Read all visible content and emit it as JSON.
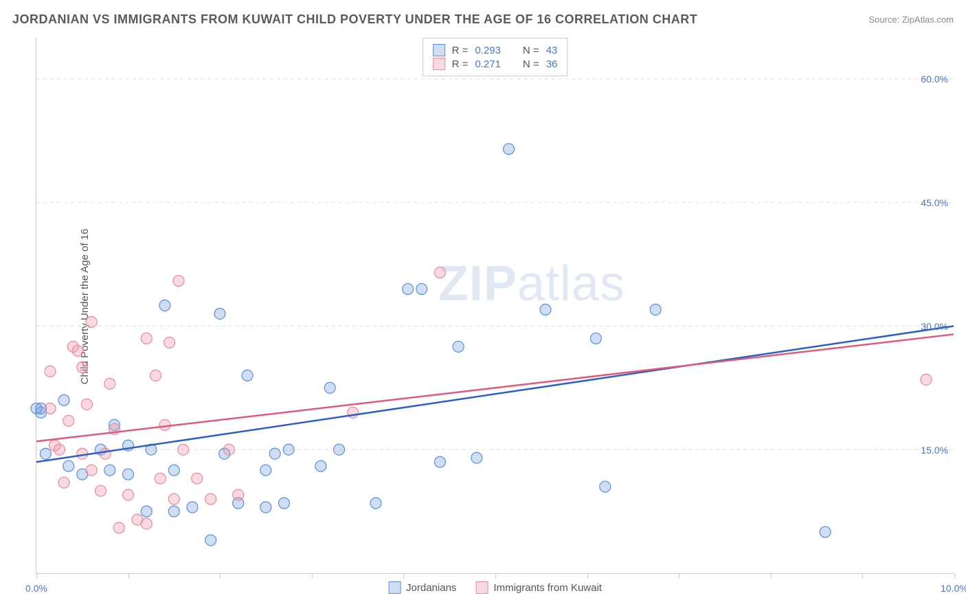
{
  "title": "JORDANIAN VS IMMIGRANTS FROM KUWAIT CHILD POVERTY UNDER THE AGE OF 16 CORRELATION CHART",
  "source_label": "Source:",
  "source_name": "ZipAtlas.com",
  "ylabel": "Child Poverty Under the Age of 16",
  "chart": {
    "type": "scatter",
    "xlim": [
      0,
      10
    ],
    "ylim": [
      0,
      65
    ],
    "x_ticks": [
      0,
      1,
      2,
      3,
      4,
      5,
      6,
      7,
      8,
      9,
      10
    ],
    "x_tick_labels": {
      "0": "0.0%",
      "10": "10.0%"
    },
    "y_gridlines": [
      15,
      30,
      45,
      60
    ],
    "y_tick_labels": {
      "15": "15.0%",
      "30": "30.0%",
      "45": "45.0%",
      "60": "60.0%"
    },
    "grid_color": "#dddddd",
    "axis_color": "#cccccc",
    "background_color": "#ffffff"
  },
  "series": [
    {
      "name": "Jordanians",
      "fill": "rgba(120,160,220,0.35)",
      "stroke": "#5a8fd6",
      "trend_color": "#2b5fc7",
      "R": "0.293",
      "N": "43",
      "trend": {
        "x1": 0,
        "y1": 13.5,
        "x2": 10,
        "y2": 30.0
      },
      "points": [
        [
          0.05,
          19.5
        ],
        [
          0.05,
          20.0
        ],
        [
          0.1,
          14.5
        ],
        [
          0.3,
          21.0
        ],
        [
          0.35,
          13.0
        ],
        [
          0.5,
          12.0
        ],
        [
          0.7,
          15.0
        ],
        [
          0.8,
          12.5
        ],
        [
          0.85,
          18.0
        ],
        [
          1.0,
          15.5
        ],
        [
          1.0,
          12.0
        ],
        [
          1.2,
          7.5
        ],
        [
          1.25,
          15.0
        ],
        [
          1.4,
          32.5
        ],
        [
          1.5,
          7.5
        ],
        [
          1.5,
          12.5
        ],
        [
          1.7,
          8.0
        ],
        [
          1.9,
          4.0
        ],
        [
          2.0,
          31.5
        ],
        [
          2.05,
          14.5
        ],
        [
          2.2,
          8.5
        ],
        [
          2.3,
          24.0
        ],
        [
          2.5,
          8.0
        ],
        [
          2.5,
          12.5
        ],
        [
          2.6,
          14.5
        ],
        [
          2.7,
          8.5
        ],
        [
          2.75,
          15.0
        ],
        [
          3.1,
          13.0
        ],
        [
          3.2,
          22.5
        ],
        [
          3.3,
          15.0
        ],
        [
          3.7,
          8.5
        ],
        [
          4.05,
          34.5
        ],
        [
          4.2,
          34.5
        ],
        [
          4.4,
          13.5
        ],
        [
          4.6,
          27.5
        ],
        [
          4.8,
          14.0
        ],
        [
          5.15,
          51.5
        ],
        [
          5.55,
          32.0
        ],
        [
          6.1,
          28.5
        ],
        [
          6.2,
          10.5
        ],
        [
          6.75,
          32.0
        ],
        [
          8.6,
          5.0
        ],
        [
          0.0,
          20.0
        ]
      ]
    },
    {
      "name": "Immigrants from Kuwait",
      "fill": "rgba(240,150,170,0.35)",
      "stroke": "#e68aa0",
      "trend_color": "#e05a7a",
      "R": "0.271",
      "N": "36",
      "trend": {
        "x1": 0,
        "y1": 16.0,
        "x2": 10,
        "y2": 29.0
      },
      "points": [
        [
          0.15,
          20.0
        ],
        [
          0.15,
          24.5
        ],
        [
          0.2,
          15.5
        ],
        [
          0.25,
          15.0
        ],
        [
          0.3,
          11.0
        ],
        [
          0.35,
          18.5
        ],
        [
          0.4,
          27.5
        ],
        [
          0.45,
          27.0
        ],
        [
          0.5,
          25.0
        ],
        [
          0.55,
          20.5
        ],
        [
          0.6,
          30.5
        ],
        [
          0.6,
          12.5
        ],
        [
          0.7,
          10.0
        ],
        [
          0.75,
          14.5
        ],
        [
          0.8,
          23.0
        ],
        [
          0.85,
          17.5
        ],
        [
          0.9,
          5.5
        ],
        [
          1.0,
          9.5
        ],
        [
          1.1,
          6.5
        ],
        [
          1.2,
          6.0
        ],
        [
          1.2,
          28.5
        ],
        [
          1.3,
          24.0
        ],
        [
          1.35,
          11.5
        ],
        [
          1.4,
          18.0
        ],
        [
          1.45,
          28.0
        ],
        [
          1.5,
          9.0
        ],
        [
          1.55,
          35.5
        ],
        [
          1.6,
          15.0
        ],
        [
          1.75,
          11.5
        ],
        [
          1.9,
          9.0
        ],
        [
          2.1,
          15.0
        ],
        [
          2.2,
          9.5
        ],
        [
          3.45,
          19.5
        ],
        [
          4.4,
          36.5
        ],
        [
          9.7,
          23.5
        ],
        [
          0.5,
          14.5
        ]
      ]
    }
  ],
  "stats_labels": {
    "R": "R =",
    "N": "N ="
  },
  "watermark": {
    "zip": "ZIP",
    "atlas": "atlas"
  },
  "marker_radius": 8,
  "marker_stroke_width": 1.2,
  "trend_stroke_width": 2.5
}
